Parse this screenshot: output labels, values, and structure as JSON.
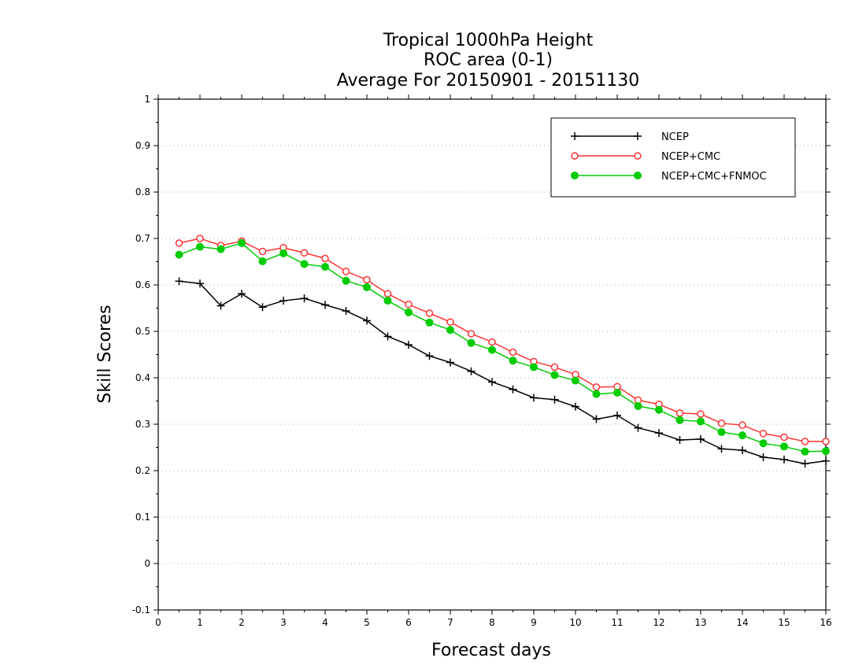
{
  "chart_data": {
    "type": "line",
    "title": [
      "Tropical 1000hPa Height",
      "ROC area (0-1)",
      "Average For 20150901 - 20151130"
    ],
    "xlabel": "Forecast days",
    "ylabel": "Skill Scores",
    "xlim": [
      0,
      16
    ],
    "ylim": [
      -0.1,
      1
    ],
    "x_ticks": [
      0,
      1,
      2,
      3,
      4,
      5,
      6,
      7,
      8,
      9,
      10,
      11,
      12,
      13,
      14,
      15,
      16
    ],
    "y_ticks": [
      -0.1,
      0,
      0.1,
      0.2,
      0.3,
      0.4,
      0.5,
      0.6,
      0.7,
      0.8,
      0.9,
      1
    ],
    "y_tick_labels": [
      "-0.1",
      "0",
      "0.1",
      "0.2",
      "0.3",
      "0.4",
      "0.5",
      "0.6",
      "0.7",
      "0.8",
      "0.9",
      "1"
    ],
    "grid": "horizontal-dotted",
    "legend": "top-right",
    "x": [
      0.5,
      1,
      1.5,
      2,
      2.5,
      3,
      3.5,
      4,
      4.5,
      5,
      5.5,
      6,
      6.5,
      7,
      7.5,
      8,
      8.5,
      9,
      9.5,
      10,
      10.5,
      11,
      11.5,
      12,
      12.5,
      13,
      13.5,
      14,
      14.5,
      15,
      15.5,
      16
    ],
    "series": [
      {
        "name": "NCEP",
        "color": "#000000",
        "marker": "plus",
        "values": [
          0.608,
          0.603,
          0.555,
          0.581,
          0.552,
          0.566,
          0.571,
          0.557,
          0.544,
          0.523,
          0.489,
          0.471,
          0.447,
          0.433,
          0.414,
          0.391,
          0.375,
          0.357,
          0.353,
          0.338,
          0.311,
          0.319,
          0.292,
          0.281,
          0.266,
          0.268,
          0.247,
          0.244,
          0.229,
          0.224,
          0.215,
          0.221
        ]
      },
      {
        "name": "NCEP+CMC",
        "color": "#ff3333",
        "marker": "open-circle",
        "values": [
          0.69,
          0.7,
          0.685,
          0.694,
          0.672,
          0.68,
          0.669,
          0.657,
          0.629,
          0.611,
          0.581,
          0.558,
          0.539,
          0.52,
          0.495,
          0.477,
          0.455,
          0.435,
          0.423,
          0.407,
          0.38,
          0.381,
          0.352,
          0.343,
          0.324,
          0.322,
          0.302,
          0.298,
          0.28,
          0.272,
          0.263,
          0.263
        ]
      },
      {
        "name": "NCEP+CMC+FNMOC",
        "color": "#00cc00",
        "marker": "filled-circle",
        "values": [
          0.665,
          0.682,
          0.677,
          0.69,
          0.651,
          0.668,
          0.645,
          0.639,
          0.609,
          0.595,
          0.566,
          0.541,
          0.519,
          0.503,
          0.475,
          0.46,
          0.437,
          0.423,
          0.406,
          0.394,
          0.365,
          0.368,
          0.339,
          0.331,
          0.309,
          0.306,
          0.283,
          0.276,
          0.259,
          0.252,
          0.241,
          0.242
        ]
      }
    ]
  }
}
